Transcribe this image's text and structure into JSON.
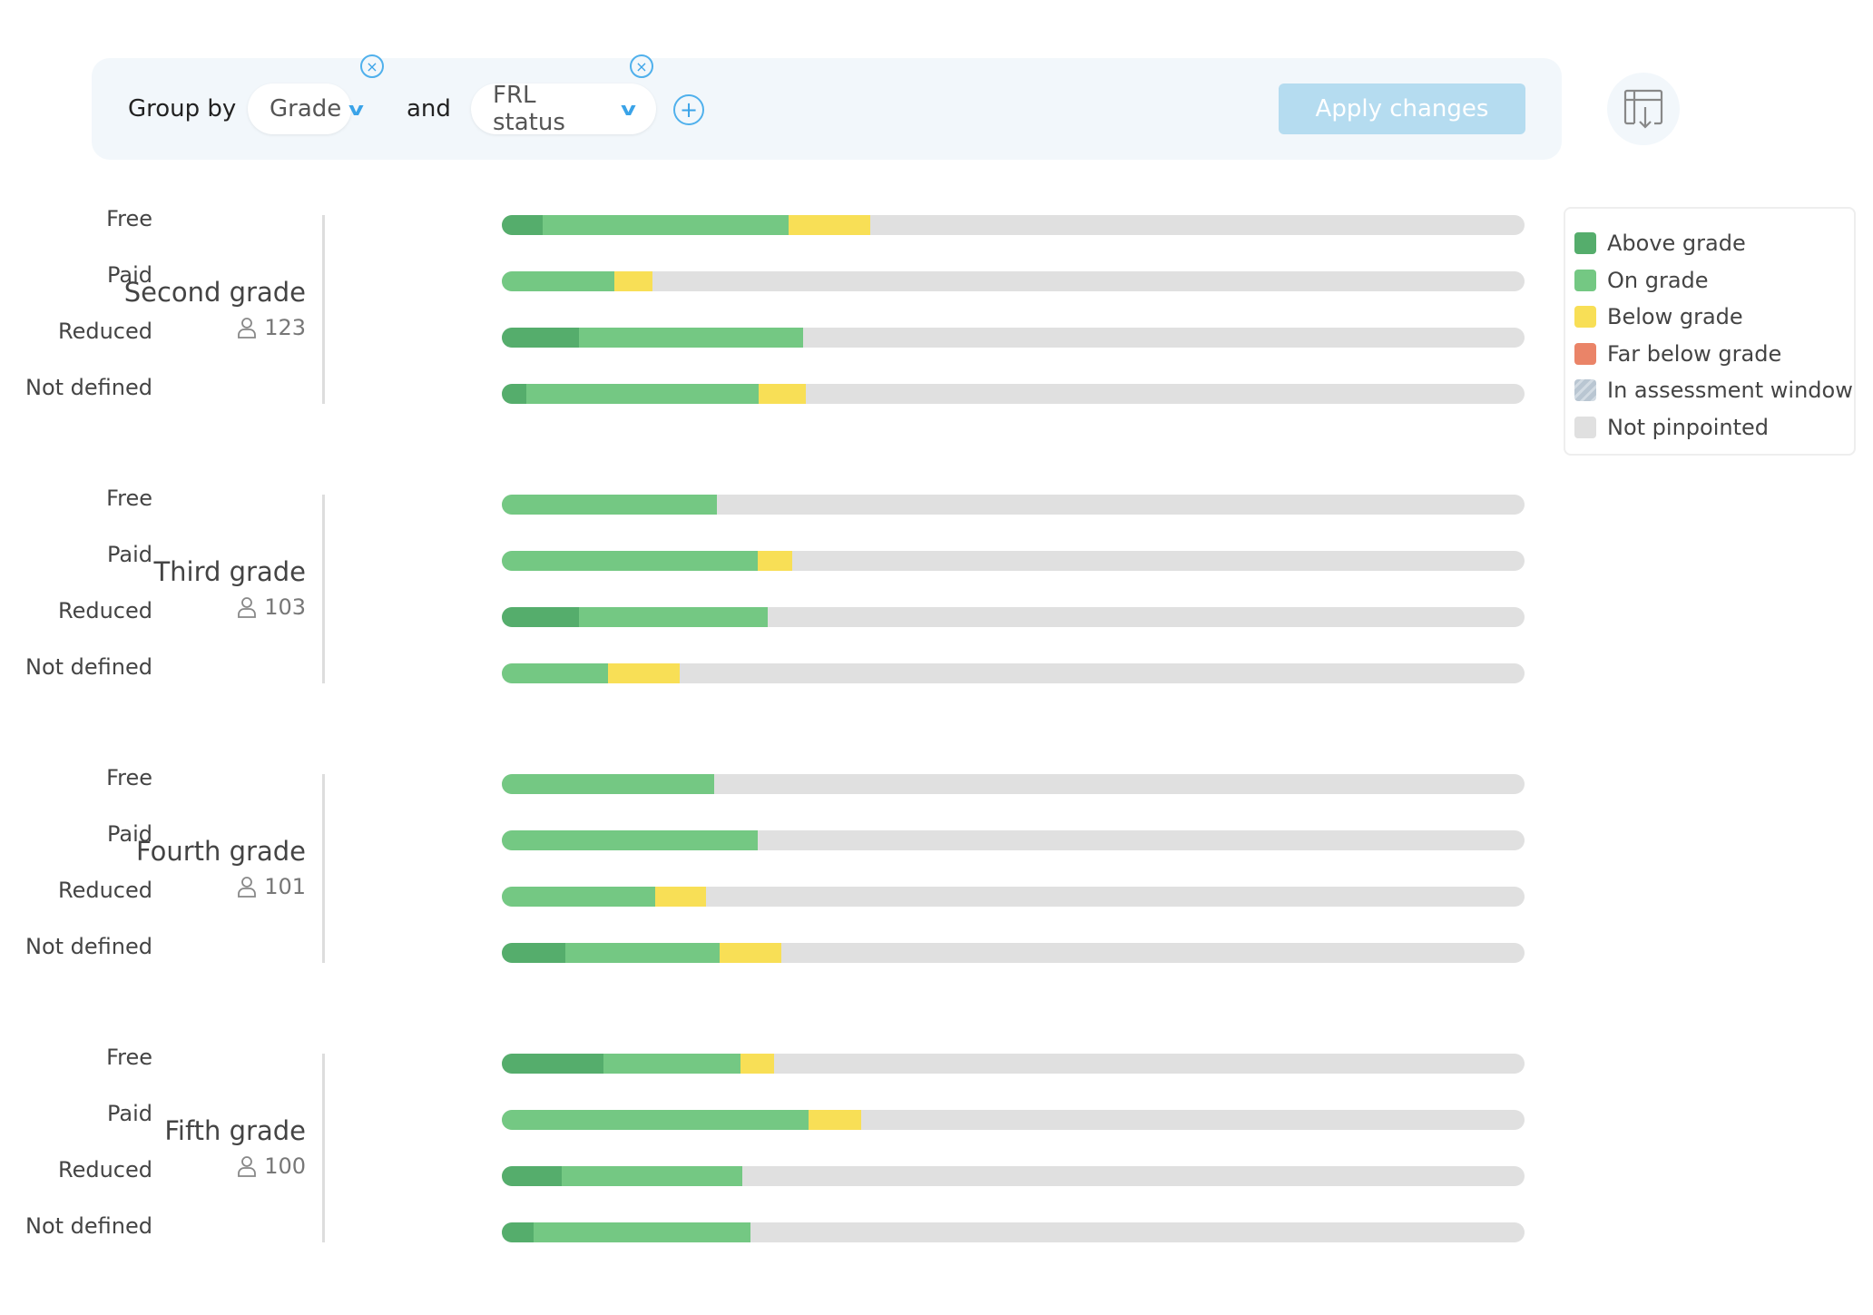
{
  "toolbar": {
    "group_by_label": "Group by",
    "field1": "Grade",
    "and_label": "and",
    "field2": "FRL status",
    "apply_label": "Apply changes"
  },
  "colors": {
    "above": "#55ad6c",
    "on": "#74c883",
    "below": "#f8df56",
    "far": "#ea8468",
    "window": "#b9c6d2",
    "not": "#e0e0e0"
  },
  "legend": [
    {
      "label": "Above grade",
      "color": "#55ad6c"
    },
    {
      "label": "On grade",
      "color": "#74c883"
    },
    {
      "label": "Below grade",
      "color": "#f8df56"
    },
    {
      "label": "Far below grade",
      "color": "#ea8468"
    },
    {
      "label": "In assessment window",
      "color": "#b9c6d2"
    },
    {
      "label": "Not pinpointed",
      "color": "#e0e0e0"
    }
  ],
  "chart_data": {
    "type": "bar",
    "stacked": true,
    "unit": "percent",
    "series_names": [
      "Above grade",
      "On grade",
      "Below grade"
    ],
    "groups": [
      {
        "name": "Second grade",
        "count": "123",
        "rows": [
          {
            "label": "Free",
            "values": [
              4,
              24,
              8
            ]
          },
          {
            "label": "Paid",
            "values": [
              0,
              11,
              3.7
            ]
          },
          {
            "label": "Reduced",
            "values": [
              7.5,
              22,
              0
            ]
          },
          {
            "label": "Not defined",
            "values": [
              2.4,
              22.7,
              4.6
            ]
          }
        ]
      },
      {
        "name": "Third grade",
        "count": "103",
        "rows": [
          {
            "label": "Free",
            "values": [
              0,
              21,
              0
            ]
          },
          {
            "label": "Paid",
            "values": [
              0,
              25,
              3.4
            ]
          },
          {
            "label": "Reduced",
            "values": [
              7.5,
              18.5,
              0
            ]
          },
          {
            "label": "Not defined",
            "values": [
              0,
              10.4,
              7
            ]
          }
        ]
      },
      {
        "name": "Fourth grade",
        "count": "101",
        "rows": [
          {
            "label": "Free",
            "values": [
              0,
              20.8,
              0
            ]
          },
          {
            "label": "Paid",
            "values": [
              0,
              25,
              0
            ]
          },
          {
            "label": "Reduced",
            "values": [
              0,
              15,
              5
            ]
          },
          {
            "label": "Not defined",
            "values": [
              6.2,
              15.1,
              6
            ]
          }
        ]
      },
      {
        "name": "Fifth grade",
        "count": "100",
        "rows": [
          {
            "label": "Free",
            "values": [
              9.9,
              13.4,
              3.3
            ]
          },
          {
            "label": "Paid",
            "values": [
              0,
              30,
              5.1
            ]
          },
          {
            "label": "Reduced",
            "values": [
              5.9,
              17.6,
              0
            ]
          },
          {
            "label": "Not defined",
            "values": [
              3.1,
              21.2,
              0
            ]
          }
        ]
      }
    ]
  }
}
